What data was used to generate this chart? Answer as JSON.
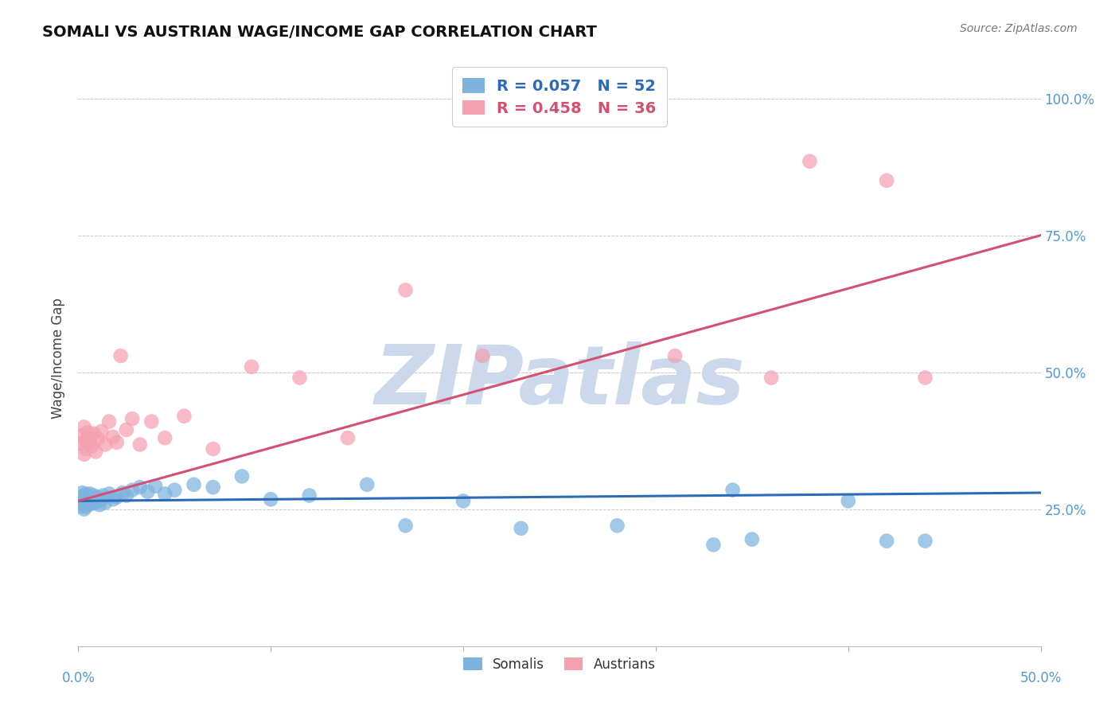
{
  "title": "SOMALI VS AUSTRIAN WAGE/INCOME GAP CORRELATION CHART",
  "source": "Source: ZipAtlas.com",
  "ylabel": "Wage/Income Gap",
  "somali_R": 0.057,
  "somali_N": 52,
  "austrian_R": 0.458,
  "austrian_N": 36,
  "somali_color": "#7eb3e0",
  "austrian_color": "#f4a0b0",
  "somali_line_color": "#2b6cb8",
  "austrian_line_color": "#d45070",
  "watermark_color": "#ccd8ec",
  "background_color": "#ffffff",
  "grid_color": "#c8c8c8",
  "xlim": [
    0.0,
    0.5
  ],
  "ylim": [
    0.05,
    1.05
  ],
  "ytick_vals": [
    0.0,
    0.25,
    0.5,
    0.75,
    1.0
  ],
  "ytick_labels": [
    "",
    "25.0%",
    "50.0%",
    "75.0%",
    "100.0%"
  ],
  "right_tick_color": "#5599cc",
  "somali_x": [
    0.001,
    0.001,
    0.002,
    0.002,
    0.003,
    0.003,
    0.003,
    0.004,
    0.004,
    0.004,
    0.005,
    0.005,
    0.005,
    0.006,
    0.006,
    0.007,
    0.007,
    0.008,
    0.008,
    0.009,
    0.01,
    0.011,
    0.012,
    0.013,
    0.014,
    0.016,
    0.018,
    0.02,
    0.023,
    0.025,
    0.028,
    0.032,
    0.036,
    0.04,
    0.045,
    0.05,
    0.06,
    0.07,
    0.085,
    0.1,
    0.12,
    0.15,
    0.17,
    0.2,
    0.23,
    0.28,
    0.33,
    0.34,
    0.35,
    0.4,
    0.42,
    0.44
  ],
  "somali_y": [
    0.27,
    0.255,
    0.265,
    0.28,
    0.25,
    0.26,
    0.275,
    0.255,
    0.268,
    0.278,
    0.262,
    0.272,
    0.258,
    0.268,
    0.278,
    0.26,
    0.27,
    0.265,
    0.275,
    0.262,
    0.272,
    0.258,
    0.268,
    0.275,
    0.262,
    0.278,
    0.268,
    0.272,
    0.28,
    0.275,
    0.285,
    0.29,
    0.282,
    0.292,
    0.278,
    0.285,
    0.295,
    0.29,
    0.31,
    0.268,
    0.275,
    0.295,
    0.22,
    0.265,
    0.215,
    0.22,
    0.185,
    0.285,
    0.195,
    0.265,
    0.192,
    0.192
  ],
  "austrian_x": [
    0.001,
    0.002,
    0.003,
    0.003,
    0.004,
    0.004,
    0.005,
    0.005,
    0.006,
    0.007,
    0.008,
    0.009,
    0.01,
    0.012,
    0.014,
    0.016,
    0.018,
    0.02,
    0.022,
    0.025,
    0.028,
    0.032,
    0.038,
    0.045,
    0.055,
    0.07,
    0.09,
    0.115,
    0.14,
    0.17,
    0.21,
    0.31,
    0.36,
    0.38,
    0.42,
    0.44
  ],
  "austrian_y": [
    0.37,
    0.385,
    0.35,
    0.4,
    0.375,
    0.36,
    0.39,
    0.38,
    0.372,
    0.365,
    0.388,
    0.355,
    0.378,
    0.392,
    0.368,
    0.41,
    0.382,
    0.372,
    0.53,
    0.395,
    0.415,
    0.368,
    0.41,
    0.38,
    0.42,
    0.36,
    0.51,
    0.49,
    0.38,
    0.65,
    0.53,
    0.53,
    0.49,
    0.885,
    0.85,
    0.49
  ]
}
